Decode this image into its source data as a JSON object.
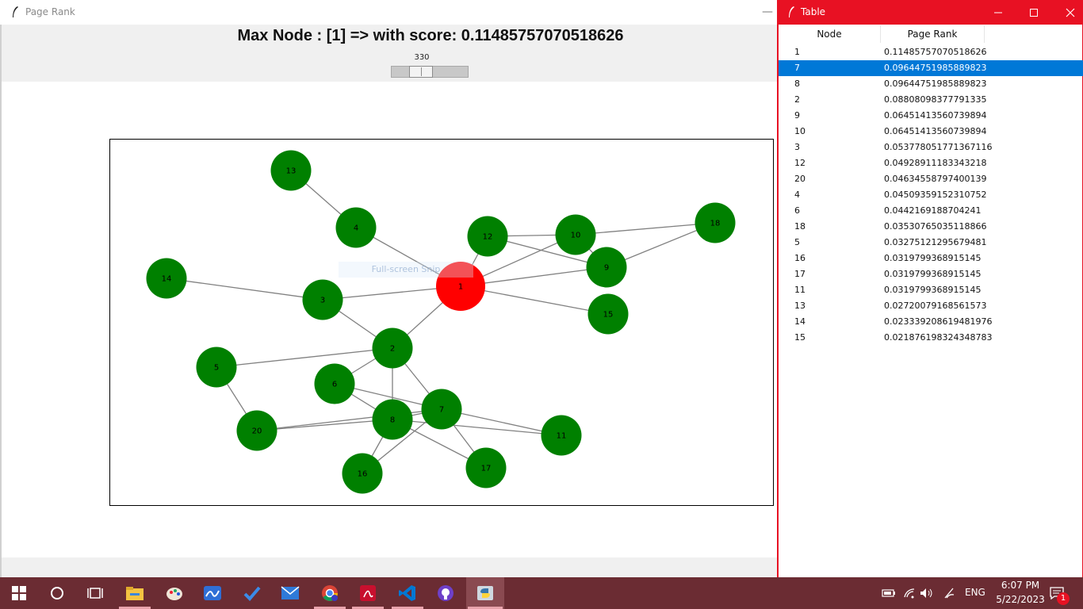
{
  "main_window": {
    "title": "Page Rank",
    "headline": "Max Node : [1] => with score: 0.11485757070518626",
    "slider_value": "330",
    "snip_hint": "Full-screen Snip"
  },
  "graph": {
    "highlight_color": "#ff0000",
    "node_color": "#008000",
    "edge_color": "#808080",
    "nodes": [
      {
        "id": "1",
        "highlight": true
      },
      {
        "id": "2"
      },
      {
        "id": "3"
      },
      {
        "id": "4"
      },
      {
        "id": "5"
      },
      {
        "id": "6"
      },
      {
        "id": "7"
      },
      {
        "id": "8"
      },
      {
        "id": "9"
      },
      {
        "id": "10"
      },
      {
        "id": "11"
      },
      {
        "id": "12"
      },
      {
        "id": "13"
      },
      {
        "id": "14"
      },
      {
        "id": "15"
      },
      {
        "id": "16"
      },
      {
        "id": "17"
      },
      {
        "id": "18"
      },
      {
        "id": "20"
      }
    ],
    "edges": [
      [
        "13",
        "4"
      ],
      [
        "4",
        "1"
      ],
      [
        "14",
        "3"
      ],
      [
        "3",
        "1"
      ],
      [
        "3",
        "2"
      ],
      [
        "2",
        "1"
      ],
      [
        "12",
        "1"
      ],
      [
        "1",
        "10"
      ],
      [
        "1",
        "9"
      ],
      [
        "1",
        "15"
      ],
      [
        "12",
        "10"
      ],
      [
        "12",
        "9"
      ],
      [
        "10",
        "9"
      ],
      [
        "10",
        "18"
      ],
      [
        "9",
        "18"
      ],
      [
        "2",
        "5"
      ],
      [
        "2",
        "6"
      ],
      [
        "2",
        "8"
      ],
      [
        "2",
        "7"
      ],
      [
        "5",
        "20"
      ],
      [
        "20",
        "8"
      ],
      [
        "20",
        "7"
      ],
      [
        "6",
        "8"
      ],
      [
        "6",
        "7"
      ],
      [
        "8",
        "7"
      ],
      [
        "8",
        "11"
      ],
      [
        "7",
        "11"
      ],
      [
        "7",
        "17"
      ],
      [
        "7",
        "16"
      ],
      [
        "8",
        "16"
      ],
      [
        "8",
        "17"
      ]
    ]
  },
  "table_window": {
    "title": "Table",
    "columns": [
      "Node",
      "Page Rank"
    ],
    "rows": [
      {
        "node": "1",
        "rank": "0.11485757070518626"
      },
      {
        "node": "7",
        "rank": "0.09644751985889823",
        "selected": true
      },
      {
        "node": "8",
        "rank": "0.09644751985889823"
      },
      {
        "node": "2",
        "rank": "0.08808098377791335"
      },
      {
        "node": "9",
        "rank": "0.06451413560739894"
      },
      {
        "node": "10",
        "rank": "0.06451413560739894"
      },
      {
        "node": "3",
        "rank": "0.053778051771367116"
      },
      {
        "node": "12",
        "rank": "0.04928911183343218"
      },
      {
        "node": "20",
        "rank": "0.04634558797400139"
      },
      {
        "node": "4",
        "rank": "0.04509359152310752"
      },
      {
        "node": "6",
        "rank": "0.0442169188704241"
      },
      {
        "node": "18",
        "rank": "0.03530765035118866"
      },
      {
        "node": "5",
        "rank": "0.03275121295679481"
      },
      {
        "node": "16",
        "rank": "0.0319799368915145"
      },
      {
        "node": "17",
        "rank": "0.0319799368915145"
      },
      {
        "node": "11",
        "rank": "0.0319799368915145"
      },
      {
        "node": "13",
        "rank": "0.02720079168561573"
      },
      {
        "node": "14",
        "rank": "0.023339208619481976"
      },
      {
        "node": "15",
        "rank": "0.021876198324348783"
      }
    ]
  },
  "taskbar": {
    "apps": [
      "start",
      "search",
      "task-view",
      "file-explorer",
      "paint",
      "whiteboard",
      "todo",
      "mail",
      "chrome",
      "acrobat",
      "vscode",
      "github",
      "python"
    ],
    "language": "ENG",
    "time": "6:07 PM",
    "date": "5/22/2023",
    "notifications": "1"
  }
}
